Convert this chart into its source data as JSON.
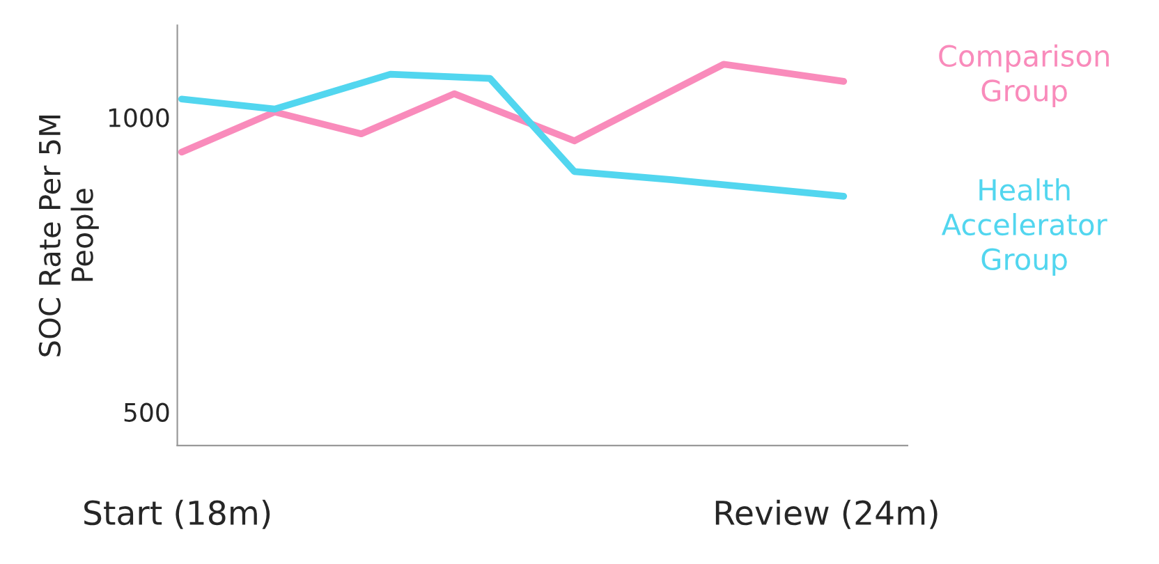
{
  "chart_data": {
    "type": "line",
    "ylabel": "SOC Rate Per 5M\nPeople",
    "xlim": [
      18,
      24.75
    ],
    "xticks": [
      {
        "value": 18,
        "label": "Start (18m)"
      },
      {
        "value": 24,
        "label": "Review (24m)"
      }
    ],
    "ylim": [
      443,
      1156
    ],
    "yticks": [
      500,
      1000
    ],
    "grid": false,
    "legend": "right",
    "series": [
      {
        "name": "Comparison\nGroup",
        "color": "#f98bbb",
        "x": [
          18.04,
          18.9,
          19.7,
          20.56,
          21.67,
          23.05,
          24.16
        ],
        "values": [
          941,
          1009,
          972,
          1040,
          960,
          1090,
          1061
        ]
      },
      {
        "name": "Health\nAccelerator\nGroup",
        "color": "#52d6ef",
        "x": [
          18.04,
          18.9,
          19.97,
          20.89,
          21.67,
          22.57,
          24.16
        ],
        "values": [
          1031,
          1014,
          1073,
          1066,
          908,
          894,
          866
        ]
      }
    ]
  }
}
